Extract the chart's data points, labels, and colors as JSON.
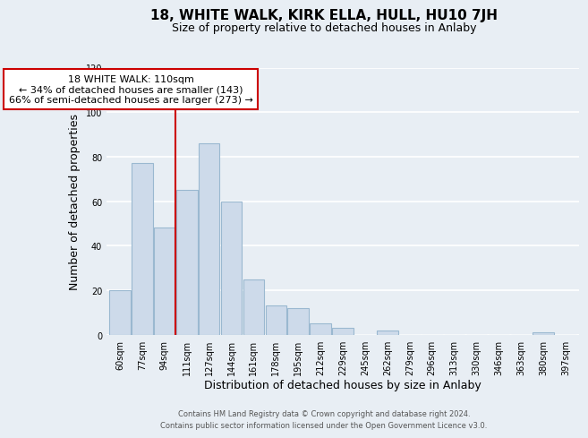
{
  "title": "18, WHITE WALK, KIRK ELLA, HULL, HU10 7JH",
  "subtitle": "Size of property relative to detached houses in Anlaby",
  "xlabel": "Distribution of detached houses by size in Anlaby",
  "ylabel": "Number of detached properties",
  "bar_color": "#cddaea",
  "bar_edge_color": "#9ab8d0",
  "background_color": "#e8eef4",
  "plot_bg_color": "#e8eef4",
  "grid_color": "#ffffff",
  "categories": [
    "60sqm",
    "77sqm",
    "94sqm",
    "111sqm",
    "127sqm",
    "144sqm",
    "161sqm",
    "178sqm",
    "195sqm",
    "212sqm",
    "229sqm",
    "245sqm",
    "262sqm",
    "279sqm",
    "296sqm",
    "313sqm",
    "330sqm",
    "346sqm",
    "363sqm",
    "380sqm",
    "397sqm"
  ],
  "values": [
    20,
    77,
    48,
    65,
    86,
    60,
    25,
    13,
    12,
    5,
    3,
    0,
    2,
    0,
    0,
    0,
    0,
    0,
    0,
    1,
    0
  ],
  "ylim": [
    0,
    120
  ],
  "yticks": [
    0,
    20,
    40,
    60,
    80,
    100,
    120
  ],
  "vline_index": 3,
  "vline_color": "#cc0000",
  "annotation_line1": "18 WHITE WALK: 110sqm",
  "annotation_line2": "← 34% of detached houses are smaller (143)",
  "annotation_line3": "66% of semi-detached houses are larger (273) →",
  "annotation_box_color": "#ffffff",
  "annotation_box_edge": "#cc0000",
  "footer_line1": "Contains HM Land Registry data © Crown copyright and database right 2024.",
  "footer_line2": "Contains public sector information licensed under the Open Government Licence v3.0.",
  "title_fontsize": 11,
  "subtitle_fontsize": 9,
  "tick_fontsize": 7,
  "label_fontsize": 9,
  "annotation_fontsize": 8,
  "footer_fontsize": 6
}
